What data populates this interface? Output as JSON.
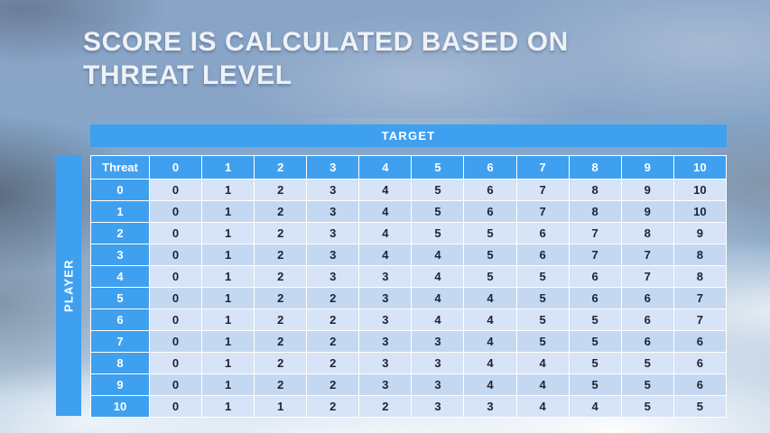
{
  "slide": {
    "title": "SCORE IS CALCULATED BASED ON THREAT LEVEL"
  },
  "table": {
    "target_label": "TARGET",
    "player_label": "PLAYER",
    "corner_label": "Threat",
    "column_headers": [
      "0",
      "1",
      "2",
      "3",
      "4",
      "5",
      "6",
      "7",
      "8",
      "9",
      "10"
    ],
    "rows": [
      {
        "threat": "0",
        "values": [
          0,
          1,
          2,
          3,
          4,
          5,
          6,
          7,
          8,
          9,
          10
        ]
      },
      {
        "threat": "1",
        "values": [
          0,
          1,
          2,
          3,
          4,
          5,
          6,
          7,
          8,
          9,
          10
        ]
      },
      {
        "threat": "2",
        "values": [
          0,
          1,
          2,
          3,
          4,
          5,
          5,
          6,
          7,
          8,
          9
        ]
      },
      {
        "threat": "3",
        "values": [
          0,
          1,
          2,
          3,
          4,
          4,
          5,
          6,
          7,
          7,
          8
        ]
      },
      {
        "threat": "4",
        "values": [
          0,
          1,
          2,
          3,
          3,
          4,
          5,
          5,
          6,
          7,
          8
        ]
      },
      {
        "threat": "5",
        "values": [
          0,
          1,
          2,
          2,
          3,
          4,
          4,
          5,
          6,
          6,
          7
        ]
      },
      {
        "threat": "6",
        "values": [
          0,
          1,
          2,
          2,
          3,
          4,
          4,
          5,
          5,
          6,
          7
        ]
      },
      {
        "threat": "7",
        "values": [
          0,
          1,
          2,
          2,
          3,
          3,
          4,
          5,
          5,
          6,
          6
        ]
      },
      {
        "threat": "8",
        "values": [
          0,
          1,
          2,
          2,
          3,
          3,
          4,
          4,
          5,
          5,
          6
        ]
      },
      {
        "threat": "9",
        "values": [
          0,
          1,
          2,
          2,
          3,
          3,
          4,
          4,
          5,
          5,
          6
        ]
      },
      {
        "threat": "10",
        "values": [
          0,
          1,
          1,
          2,
          2,
          3,
          3,
          4,
          4,
          5,
          5
        ]
      }
    ]
  },
  "colors": {
    "accent_blue": "#3fa0f0",
    "band_light": "#d7e3f6",
    "band_dark": "#c5d8f1",
    "header_text": "#ffffff",
    "cell_text": "#1c2430"
  }
}
